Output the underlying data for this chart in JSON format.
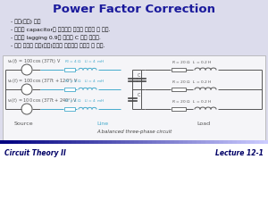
{
  "title": "Power Factor Correction",
  "title_color": "#1a1a9c",
  "title_fontsize": 9.5,
  "bg_color": "#dcdcec",
  "bullets": [
    "- 삼상(三相) 회로",
    "- 부하에 capacitor를 추가동서 역률을 개선할 수 있다.",
    "- 역률이 lagging 0.9가 되도록 C 값을 정하라.",
    "- 삼상 회로를 단상(單相)회로로 변환하여 해석할 수 있다."
  ],
  "bullet_fontsize": 4.5,
  "bullet_color": "#111111",
  "wire_color": "#555555",
  "line_color": "#44aacc",
  "circuit_bg": "#f5f5f8",
  "cap_color": "#444444",
  "source_label": "Source",
  "line_label": "Line",
  "load_label": "Load",
  "caption": "A balanced three-phase circuit",
  "footer_left": "Circuit Theory II",
  "footer_right": "Lecture 12-1",
  "footer_text_color": "#000066"
}
